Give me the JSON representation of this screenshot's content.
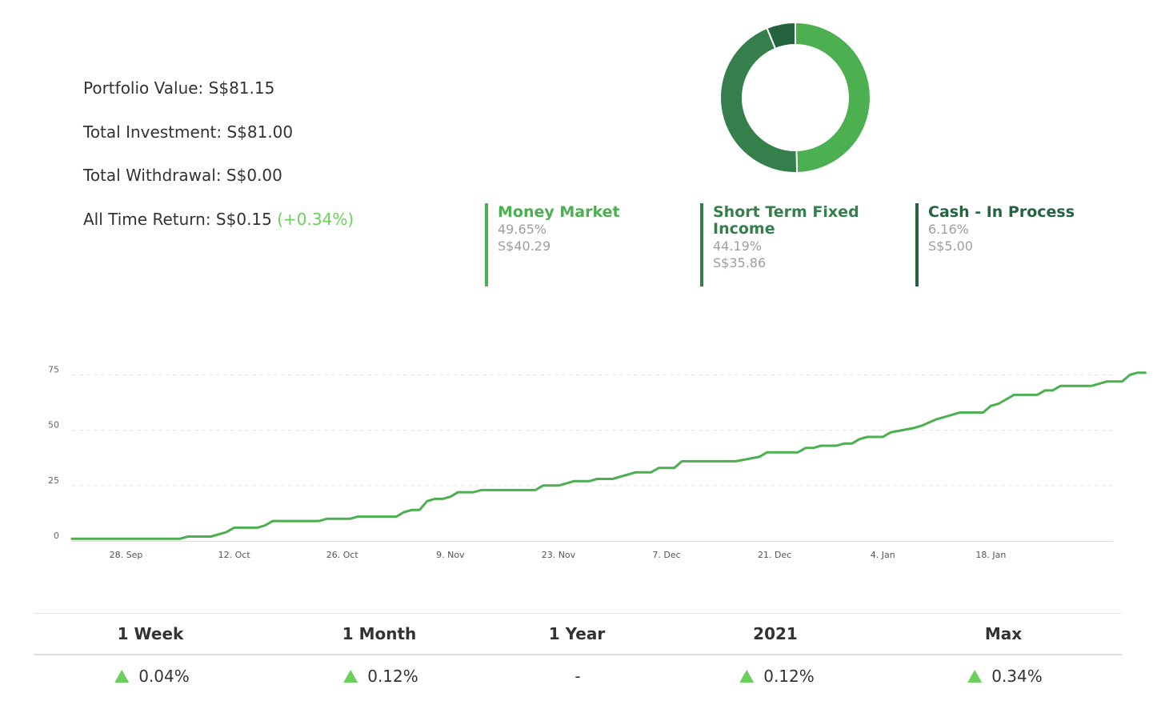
{
  "summary": {
    "portfolio_value_label": "Portfolio Value: ",
    "portfolio_value": "S$81.15",
    "total_investment_label": "Total Investment: ",
    "total_investment": "S$81.00",
    "total_withdrawal_label": "Total Withdrawal: ",
    "total_withdrawal": "S$0.00",
    "all_time_return_label": "All Time Return: ",
    "all_time_return": "S$0.15",
    "all_time_return_pct": "(+0.34%)",
    "positive_color": "#6ccf5b"
  },
  "allocation": [
    {
      "name": "Money Market",
      "percent": "49.65%",
      "value": "S$40.29",
      "share": 49.65,
      "color": "#4caf50"
    },
    {
      "name": "Short Term Fixed Income",
      "percent": "44.19%",
      "value": "S$35.86",
      "share": 44.19,
      "color": "#357f4c"
    },
    {
      "name": "Cash - In Process",
      "percent": "6.16%",
      "value": "S$5.00",
      "share": 6.16,
      "color": "#25633f"
    }
  ],
  "returns": {
    "periods": [
      {
        "label": "1 Week",
        "value": "0.04%",
        "up": true
      },
      {
        "label": "1 Month",
        "value": "0.12%",
        "up": true
      },
      {
        "label": "1 Year",
        "value": "-",
        "up": false
      },
      {
        "label": "2021",
        "value": "0.12%",
        "up": true
      },
      {
        "label": "Max",
        "value": "0.34%",
        "up": true
      }
    ],
    "up_color": "#6ccf5b"
  },
  "chart_data": [
    {
      "type": "pie",
      "labels": [
        "Money Market",
        "Short Term Fixed Income",
        "Cash - In Process"
      ],
      "values": [
        49.65,
        44.19,
        6.16
      ],
      "colors": [
        "#4caf50",
        "#357f4c",
        "#25633f"
      ]
    },
    {
      "type": "line",
      "x_start": "2020-09-21",
      "x_ticks": [
        "28. Sep",
        "12. Oct",
        "26. Oct",
        "9. Nov",
        "23. Nov",
        "7. Dec",
        "21. Dec",
        "4. Jan",
        "18. Jan"
      ],
      "x_tick_dates": [
        "2020-09-28",
        "2020-10-12",
        "2020-10-26",
        "2020-11-09",
        "2020-11-23",
        "2020-12-07",
        "2020-12-21",
        "2021-01-04",
        "2021-01-18"
      ],
      "y_ticks": [
        0,
        25,
        50,
        75
      ],
      "ylim": [
        0,
        80
      ],
      "grid": true,
      "line_color": "#4caf50",
      "series": [
        {
          "points": [
            [
              "2020-09-21",
              1
            ],
            [
              "2020-10-05",
              1
            ],
            [
              "2020-10-06",
              2
            ],
            [
              "2020-10-09",
              2
            ],
            [
              "2020-10-11",
              4
            ],
            [
              "2020-10-12",
              6
            ],
            [
              "2020-10-15",
              6
            ],
            [
              "2020-10-16",
              7
            ],
            [
              "2020-10-17",
              9
            ],
            [
              "2020-10-23",
              9
            ],
            [
              "2020-10-24",
              10
            ],
            [
              "2020-10-27",
              10
            ],
            [
              "2020-10-28",
              11
            ],
            [
              "2020-11-02",
              11
            ],
            [
              "2020-11-03",
              13
            ],
            [
              "2020-11-04",
              14
            ],
            [
              "2020-11-05",
              14
            ],
            [
              "2020-11-06",
              18
            ],
            [
              "2020-11-07",
              19
            ],
            [
              "2020-11-08",
              19
            ],
            [
              "2020-11-09",
              20
            ],
            [
              "2020-11-10",
              22
            ],
            [
              "2020-11-12",
              22
            ],
            [
              "2020-11-13",
              23
            ],
            [
              "2020-11-20",
              23
            ],
            [
              "2020-11-21",
              25
            ],
            [
              "2020-11-23",
              25
            ],
            [
              "2020-11-25",
              27
            ],
            [
              "2020-11-27",
              27
            ],
            [
              "2020-11-28",
              28
            ],
            [
              "2020-11-30",
              28
            ],
            [
              "2020-12-02",
              30
            ],
            [
              "2020-12-03",
              31
            ],
            [
              "2020-12-05",
              31
            ],
            [
              "2020-12-06",
              33
            ],
            [
              "2020-12-08",
              33
            ],
            [
              "2020-12-09",
              36
            ],
            [
              "2020-12-16",
              36
            ],
            [
              "2020-12-19",
              38
            ],
            [
              "2020-12-20",
              40
            ],
            [
              "2020-12-24",
              40
            ],
            [
              "2020-12-25",
              42
            ],
            [
              "2020-12-26",
              42
            ],
            [
              "2020-12-27",
              43
            ],
            [
              "2020-12-29",
              43
            ],
            [
              "2020-12-30",
              44
            ],
            [
              "2020-12-31",
              44
            ],
            [
              "2021-01-01",
              46
            ],
            [
              "2021-01-02",
              47
            ],
            [
              "2021-01-04",
              47
            ],
            [
              "2021-01-05",
              49
            ],
            [
              "2021-01-08",
              51
            ],
            [
              "2021-01-09",
              52
            ],
            [
              "2021-01-11",
              55
            ],
            [
              "2021-01-13",
              57
            ],
            [
              "2021-01-14",
              58
            ],
            [
              "2021-01-17",
              58
            ],
            [
              "2021-01-18",
              61
            ],
            [
              "2021-01-19",
              62
            ],
            [
              "2021-01-20",
              64
            ],
            [
              "2021-01-21",
              66
            ],
            [
              "2021-01-24",
              66
            ],
            [
              "2021-01-25",
              68
            ],
            [
              "2021-01-26",
              68
            ],
            [
              "2021-01-27",
              70
            ],
            [
              "2021-01-31",
              70
            ],
            [
              "2021-02-01",
              71
            ],
            [
              "2021-02-02",
              72
            ],
            [
              "2021-02-04",
              72
            ],
            [
              "2021-02-05",
              75
            ],
            [
              "2021-02-06",
              76
            ],
            [
              "2021-02-07",
              76
            ]
          ]
        }
      ]
    }
  ]
}
